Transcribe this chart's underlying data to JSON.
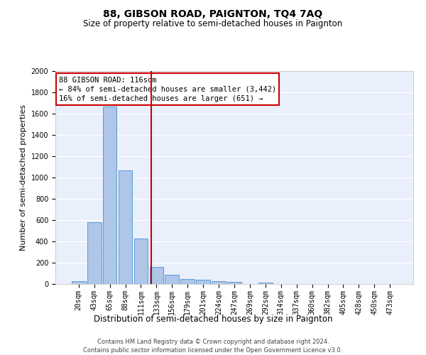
{
  "title": "88, GIBSON ROAD, PAIGNTON, TQ4 7AQ",
  "subtitle": "Size of property relative to semi-detached houses in Paignton",
  "xlabel": "Distribution of semi-detached houses by size in Paignton",
  "ylabel": "Number of semi-detached properties",
  "categories": [
    "20sqm",
    "43sqm",
    "65sqm",
    "88sqm",
    "111sqm",
    "133sqm",
    "156sqm",
    "179sqm",
    "201sqm",
    "224sqm",
    "247sqm",
    "269sqm",
    "292sqm",
    "314sqm",
    "337sqm",
    "360sqm",
    "382sqm",
    "405sqm",
    "428sqm",
    "450sqm",
    "473sqm"
  ],
  "values": [
    30,
    580,
    1670,
    1065,
    430,
    160,
    85,
    45,
    40,
    25,
    20,
    0,
    15,
    0,
    0,
    0,
    0,
    0,
    0,
    0,
    0
  ],
  "bar_color": "#aec6e8",
  "bar_edge_color": "#5b9bd5",
  "background_color": "#eaf0fb",
  "grid_color": "#ffffff",
  "red_line_x": 4.65,
  "annotation_text": "88 GIBSON ROAD: 116sqm\n← 84% of semi-detached houses are smaller (3,442)\n16% of semi-detached houses are larger (651) →",
  "annotation_box_color": "#ffffff",
  "annotation_box_edge_color": "#cc0000",
  "ylim": [
    0,
    2000
  ],
  "yticks": [
    0,
    200,
    400,
    600,
    800,
    1000,
    1200,
    1400,
    1600,
    1800,
    2000
  ],
  "footer_line1": "Contains HM Land Registry data © Crown copyright and database right 2024.",
  "footer_line2": "Contains public sector information licensed under the Open Government Licence v3.0.",
  "title_fontsize": 10,
  "subtitle_fontsize": 8.5,
  "xlabel_fontsize": 8.5,
  "ylabel_fontsize": 8,
  "tick_fontsize": 7,
  "annotation_fontsize": 7.5,
  "footer_fontsize": 6
}
